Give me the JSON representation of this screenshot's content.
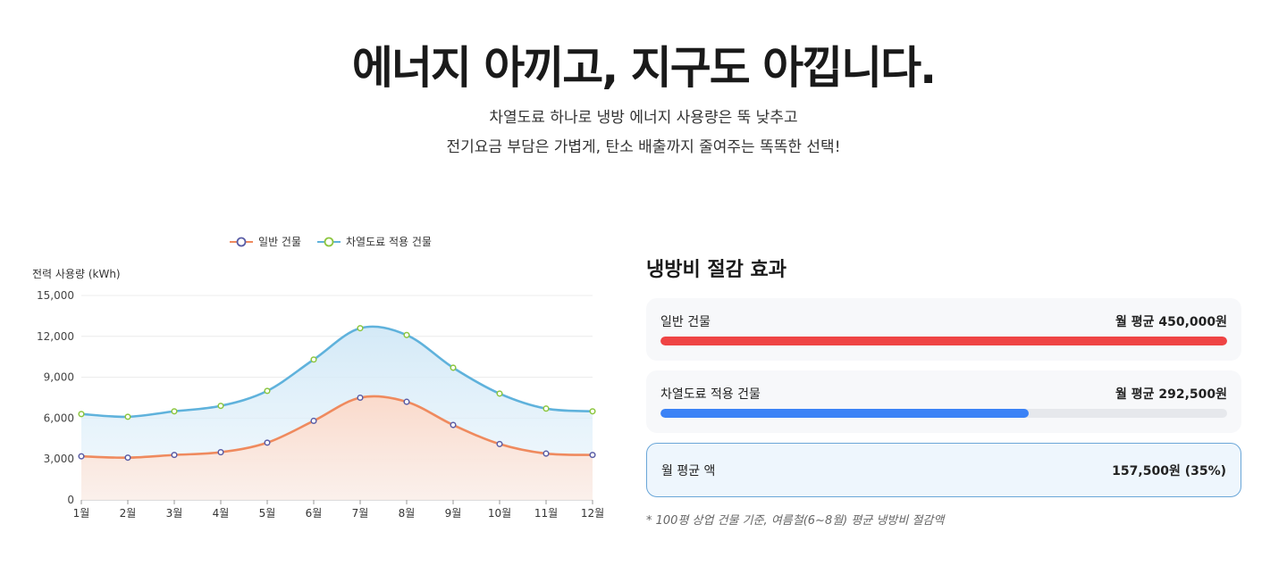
{
  "hero": {
    "title": "에너지 아끼고, 지구도 아낍니다.",
    "subtitle_line1": "차열도료 하나로 냉방 에너지 사용량은 뚝 낮추고",
    "subtitle_line2": "전기요금 부담은 가볍게, 탄소 배출까지 줄여주는 똑똑한 선택!"
  },
  "chart_data": {
    "type": "area",
    "ylabel": "전력 사용량 (kWh)",
    "ylim": [
      0,
      15000
    ],
    "yticks": [
      "0",
      "3,000",
      "6,000",
      "9,000",
      "12,000",
      "15,000"
    ],
    "categories": [
      "1월",
      "2월",
      "3월",
      "4월",
      "5월",
      "6월",
      "7월",
      "8월",
      "9월",
      "10월",
      "11월",
      "12월"
    ],
    "legend_placement": "top-center",
    "grid": true,
    "series": [
      {
        "name": "일반 건물",
        "color": "#ef8a5e",
        "marker": "#5b5ea6",
        "values": [
          3200,
          3100,
          3300,
          3500,
          4200,
          5800,
          7500,
          7200,
          5500,
          4100,
          3400,
          3300
        ]
      },
      {
        "name": "차열도료 적용 건물",
        "color": "#5fb2dc",
        "marker": "#8cc63f",
        "values": [
          6300,
          6100,
          6500,
          6900,
          8000,
          10300,
          12600,
          12100,
          9700,
          7800,
          6700,
          6500
        ]
      }
    ]
  },
  "panel": {
    "title": "냉방비 절감 효과",
    "normal": {
      "label": "일반 건물",
      "amount": "월 평균 450,000원",
      "fraction": 1.0,
      "color": "#ef4444"
    },
    "coated": {
      "label": "차열도료 적용 건물",
      "amount": "월 평균 292,500원",
      "fraction": 0.65,
      "color": "#3b82f6"
    },
    "saving": {
      "label": "월 평균 액",
      "amount": "157,500원 (35%)"
    },
    "note": "* 100평 상업 건물 기준, 여름철(6~8월) 평균 냉방비 절감액"
  }
}
